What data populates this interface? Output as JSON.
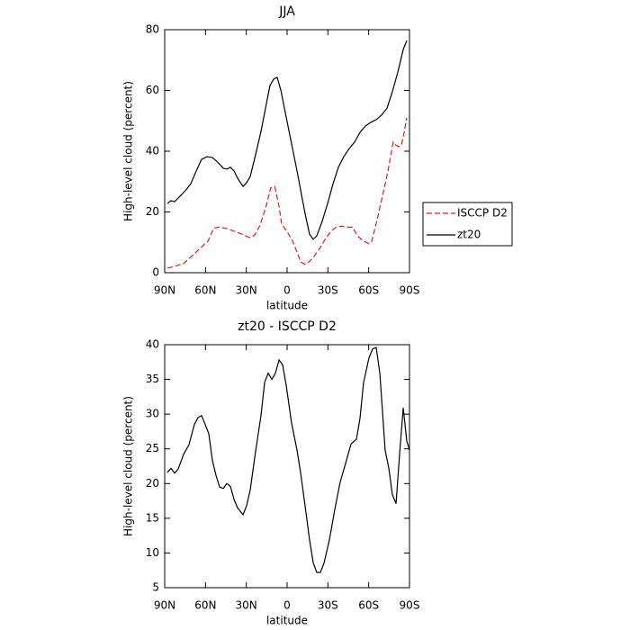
{
  "chart_data": [
    {
      "type": "line",
      "title": "JJA",
      "xlabel": "latitude",
      "ylabel": "High-level cloud (percent)",
      "xlim": [
        90,
        -90
      ],
      "xticks": [
        {
          "value": 90,
          "label": "90N"
        },
        {
          "value": 60,
          "label": "60N"
        },
        {
          "value": 30,
          "label": "30N"
        },
        0,
        {
          "value": -30,
          "label": "30S"
        },
        {
          "value": -60,
          "label": "60S"
        },
        {
          "value": -90,
          "label": "90S"
        }
      ],
      "ylim": [
        0,
        80
      ],
      "yticks": [
        0,
        20,
        40,
        60,
        80
      ],
      "legend": "right",
      "series": [
        {
          "name": "ISCCP D2",
          "color": "#e8191c",
          "dash": true,
          "x": [
            88,
            82,
            76,
            70,
            64,
            58,
            54,
            50,
            44,
            38,
            32,
            28,
            24,
            20,
            16,
            12,
            9,
            6,
            4,
            0,
            -4,
            -8,
            -10,
            -13,
            -16,
            -20,
            -24,
            -28,
            -32,
            -36,
            -40,
            -44,
            -48,
            -52,
            -56,
            -60,
            -62,
            -66,
            -70,
            -74,
            -78,
            -80,
            -82,
            -84,
            -86,
            -88
          ],
          "values": [
            1.5,
            2.2,
            3,
            5.5,
            8,
            10.5,
            14.7,
            15,
            14.5,
            13.5,
            12.5,
            11.6,
            12.3,
            15.5,
            21,
            28,
            28.3,
            22,
            16,
            13.5,
            10.5,
            6,
            3.5,
            2.8,
            3.5,
            5.5,
            8,
            11,
            13.5,
            15,
            15.3,
            15,
            15,
            12,
            10.5,
            9.6,
            10,
            17,
            25,
            33,
            43,
            42,
            41.5,
            42,
            46,
            51
          ]
        },
        {
          "name": "zt20",
          "color": "#000000",
          "dash": false,
          "x": [
            88,
            85.4,
            82.7,
            78.7,
            74.8,
            70.8,
            66.8,
            62.9,
            58.9,
            55,
            51,
            47,
            44.3,
            41.7,
            39,
            36.4,
            32.4,
            29.8,
            27.1,
            23.2,
            19.2,
            15.2,
            12.6,
            9.9,
            7.3,
            4.6,
            0.7,
            -3.3,
            -7.3,
            -11.3,
            -13.9,
            -16.5,
            -19.2,
            -21.8,
            -25.8,
            -29.8,
            -33.8,
            -37.7,
            -41.7,
            -45.7,
            -49.6,
            -53.6,
            -57.6,
            -61.6,
            -65.5,
            -69.5,
            -73.5,
            -77.4,
            -81.4,
            -85.4,
            -88
          ],
          "values": [
            22.8,
            23.7,
            23.4,
            25.2,
            27,
            29.3,
            33.5,
            37.3,
            38.2,
            37.9,
            36.4,
            34.4,
            34.1,
            34.7,
            33.5,
            31.1,
            28.4,
            29.6,
            31.7,
            38.8,
            46.5,
            55.7,
            61.6,
            63.7,
            64.3,
            60.1,
            51.3,
            42.4,
            33.5,
            24,
            18,
            12.7,
            11,
            12.1,
            16.9,
            22.8,
            29.3,
            34.7,
            38.2,
            40.9,
            43,
            46.2,
            48.3,
            49.5,
            50.4,
            51.9,
            54.2,
            59.6,
            66,
            73.5,
            76.4
          ]
        }
      ]
    },
    {
      "type": "line",
      "title": "zt20 - ISCCP D2",
      "xlabel": "latitude",
      "ylabel": "High-level cloud (percent)",
      "xlim": [
        90,
        -90
      ],
      "xticks": [
        {
          "value": 90,
          "label": "90N"
        },
        {
          "value": 60,
          "label": "60N"
        },
        {
          "value": 30,
          "label": "30N"
        },
        0,
        {
          "value": -30,
          "label": "30S"
        },
        {
          "value": -60,
          "label": "60S"
        },
        {
          "value": -90,
          "label": "90S"
        }
      ],
      "ylim": [
        5,
        40
      ],
      "yticks": [
        5,
        10,
        15,
        20,
        25,
        30,
        35,
        40
      ],
      "series": [
        {
          "color": "#000000",
          "dash": false,
          "x": [
            88,
            85.4,
            82.7,
            80.1,
            76.1,
            72.1,
            68.2,
            65.5,
            62.9,
            60.2,
            57.6,
            54.9,
            52.3,
            49.6,
            47,
            44.3,
            41.7,
            39,
            36.4,
            32.4,
            29.8,
            27.1,
            23.2,
            19.2,
            16.5,
            13.9,
            11.2,
            8.6,
            5.9,
            3.3,
            0.7,
            -3.3,
            -7.3,
            -9.9,
            -13.9,
            -16.5,
            -19.2,
            -21.8,
            -24.5,
            -27.1,
            -31.1,
            -35.1,
            -39,
            -43,
            -47,
            -51,
            -53.6,
            -56.2,
            -60.2,
            -62.9,
            -65.5,
            -68.2,
            -72.1,
            -74.8,
            -77.4,
            -80.1,
            -82.7,
            -85.4,
            -88,
            -90
          ],
          "values": [
            21.6,
            22.2,
            21.5,
            22.1,
            24.2,
            25.6,
            28.5,
            29.5,
            29.8,
            28.5,
            27.2,
            23.3,
            21.2,
            19.5,
            19.3,
            20,
            19.6,
            17.7,
            16.5,
            15.5,
            16.8,
            19.1,
            24.6,
            29.8,
            34.6,
            35.9,
            35,
            35.9,
            37.8,
            37.1,
            34.2,
            28.7,
            24.8,
            21.6,
            15.8,
            11.9,
            8.6,
            7.2,
            7.2,
            8.5,
            11.9,
            16.3,
            20.2,
            22.9,
            25.7,
            26.4,
            29.4,
            34.5,
            38.1,
            39.4,
            39.6,
            35.9,
            24.8,
            22.2,
            18.4,
            17.1,
            24.2,
            30.9,
            26.1,
            24.8
          ]
        }
      ]
    }
  ]
}
